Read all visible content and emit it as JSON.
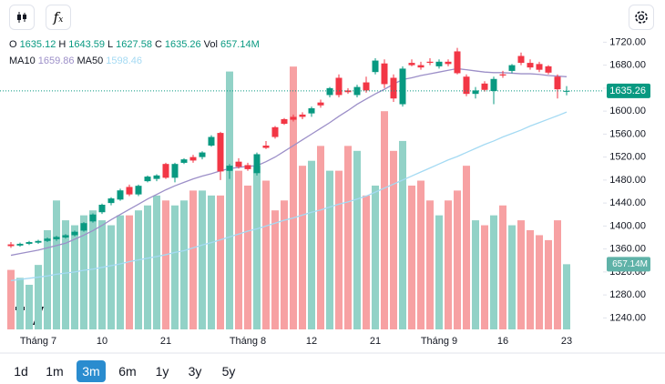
{
  "toolbar": {
    "ranges": [
      "1d",
      "1m",
      "3m",
      "6m",
      "1y",
      "3y",
      "5y"
    ],
    "active_range": "3m"
  },
  "chart_data": {
    "type": "candlestick",
    "header_labels": [
      "O",
      "H",
      "L",
      "C",
      "Vol"
    ],
    "categories": [
      null,
      null,
      null,
      "Tháng 7",
      null,
      null,
      null,
      null,
      null,
      null,
      "10",
      null,
      null,
      null,
      null,
      null,
      null,
      "21",
      null,
      null,
      null,
      null,
      null,
      null,
      null,
      null,
      "Tháng 8",
      null,
      null,
      null,
      null,
      null,
      null,
      "12",
      null,
      null,
      null,
      null,
      null,
      null,
      "21",
      null,
      null,
      null,
      null,
      null,
      null,
      "Tháng 9",
      null,
      null,
      null,
      null,
      null,
      null,
      "16",
      null,
      null,
      null,
      null,
      null,
      null,
      "23"
    ],
    "ohlc": [
      [
        1368,
        1372,
        1362,
        1365
      ],
      [
        1366,
        1371,
        1364,
        1369
      ],
      [
        1369,
        1374,
        1367,
        1372
      ],
      [
        1371,
        1376,
        1369,
        1374
      ],
      [
        1374,
        1380,
        1372,
        1378
      ],
      [
        1377,
        1383,
        1374,
        1381
      ],
      [
        1380,
        1386,
        1378,
        1384
      ],
      [
        1384,
        1392,
        1382,
        1390
      ],
      [
        1392,
        1407,
        1390,
        1405
      ],
      [
        1408,
        1422,
        1406,
        1420
      ],
      [
        1424,
        1439,
        1421,
        1437
      ],
      [
        1440,
        1450,
        1436,
        1448
      ],
      [
        1446,
        1465,
        1444,
        1462
      ],
      [
        1468,
        1472,
        1452,
        1455
      ],
      [
        1455,
        1472,
        1452,
        1470
      ],
      [
        1478,
        1488,
        1476,
        1486
      ],
      [
        1482,
        1490,
        1478,
        1488
      ],
      [
        1508,
        1510,
        1482,
        1484
      ],
      [
        1484,
        1510,
        1476,
        1508
      ],
      [
        1510,
        1518,
        1508,
        1516
      ],
      [
        1520,
        1524,
        1510,
        1514
      ],
      [
        1520,
        1530,
        1516,
        1528
      ],
      [
        1540,
        1558,
        1538,
        1555
      ],
      [
        1562,
        1564,
        1480,
        1495
      ],
      [
        1496,
        1508,
        1482,
        1505
      ],
      [
        1512,
        1518,
        1500,
        1503
      ],
      [
        1506,
        1510,
        1496,
        1499
      ],
      [
        1492,
        1528,
        1488,
        1525
      ],
      [
        1540,
        1548,
        1534,
        1536
      ],
      [
        1572,
        1574,
        1552,
        1555
      ],
      [
        1586,
        1588,
        1576,
        1578
      ],
      [
        1590,
        1594,
        1582,
        1585
      ],
      [
        1594,
        1598,
        1586,
        1590
      ],
      [
        1596,
        1608,
        1590,
        1605
      ],
      [
        1615,
        1620,
        1606,
        1610
      ],
      [
        1628,
        1642,
        1624,
        1640
      ],
      [
        1658,
        1664,
        1624,
        1628
      ],
      [
        1636,
        1640,
        1630,
        1633
      ],
      [
        1628,
        1646,
        1624,
        1642
      ],
      [
        1650,
        1660,
        1632,
        1636
      ],
      [
        1668,
        1692,
        1664,
        1688
      ],
      [
        1683,
        1690,
        1640,
        1647
      ],
      [
        1658,
        1664,
        1616,
        1622
      ],
      [
        1612,
        1678,
        1608,
        1674
      ],
      [
        1684,
        1690,
        1678,
        1680
      ],
      [
        1680,
        1686,
        1672,
        1676
      ],
      [
        1686,
        1692,
        1680,
        1684
      ],
      [
        1678,
        1690,
        1674,
        1686
      ],
      [
        1686,
        1690,
        1678,
        1682
      ],
      [
        1704,
        1710,
        1664,
        1666
      ],
      [
        1660,
        1664,
        1626,
        1630
      ],
      [
        1630,
        1642,
        1622,
        1636
      ],
      [
        1648,
        1652,
        1634,
        1637
      ],
      [
        1635,
        1660,
        1612,
        1656
      ],
      [
        1664,
        1670,
        1658,
        1662
      ],
      [
        1670,
        1682,
        1666,
        1680
      ],
      [
        1696,
        1702,
        1680,
        1684
      ],
      [
        1684,
        1690,
        1672,
        1676
      ],
      [
        1682,
        1686,
        1668,
        1672
      ],
      [
        1678,
        1680,
        1664,
        1667
      ],
      [
        1660,
        1664,
        1622,
        1638
      ],
      [
        1635.12,
        1643.59,
        1627.58,
        1635.26
      ]
    ],
    "up_color": "#089981",
    "down_color": "#f23645",
    "volume": {
      "values": [
        600,
        520,
        450,
        650,
        1000,
        1300,
        1100,
        1050,
        1150,
        1200,
        1100,
        1050,
        1150,
        1150,
        1200,
        1250,
        1350,
        1300,
        1250,
        1300,
        1400,
        1400,
        1350,
        1350,
        2600,
        1600,
        1450,
        1650,
        1500,
        1200,
        1300,
        2650,
        1650,
        1700,
        1850,
        1600,
        1600,
        1850,
        1800,
        1350,
        1450,
        2200,
        1800,
        1900,
        1450,
        1500,
        1300,
        1150,
        1300,
        1400,
        1650,
        1100,
        1050,
        1150,
        1250,
        1050,
        1100,
        1000,
        950,
        900,
        1100,
        657.14
      ],
      "value_labels": [
        null,
        null,
        null,
        null,
        null,
        null,
        null,
        null,
        null,
        null,
        null,
        null,
        null,
        null,
        null,
        null,
        null,
        null,
        null,
        null,
        null,
        null,
        null,
        null,
        null,
        null,
        null,
        null,
        null,
        null,
        null,
        null,
        null,
        null,
        null,
        null,
        null,
        null,
        null,
        null,
        null,
        null,
        null,
        null,
        null,
        null,
        null,
        null,
        null,
        null,
        null,
        null,
        null,
        null,
        null,
        null,
        null,
        null,
        null,
        null,
        null,
        "657.14M"
      ],
      "ylim": [
        0,
        3000
      ],
      "up_color": "#92d2c7",
      "down_color": "#f7a1a3"
    },
    "series": [
      {
        "name": "MA10",
        "color": "#9c8fc8",
        "values": [
          1349,
          1352,
          1355,
          1358,
          1362,
          1366,
          1370,
          1377,
          1384,
          1392,
          1401,
          1411,
          1420,
          1429,
          1438,
          1447,
          1455,
          1463,
          1470,
          1476,
          1482,
          1487,
          1491,
          1496,
          1500,
          1502,
          1504,
          1505,
          1512,
          1520,
          1530,
          1540,
          1550,
          1560,
          1570,
          1580,
          1591,
          1601,
          1612,
          1621,
          1630,
          1638,
          1647,
          1655,
          1658,
          1662,
          1665,
          1668,
          1671,
          1674,
          1672,
          1670,
          1668,
          1667,
          1667,
          1666,
          1665,
          1665,
          1664,
          1662,
          1661,
          1659.86
        ]
      },
      {
        "name": "MA50",
        "color": "#a4daf3",
        "values": [
          1305,
          1307,
          1309,
          1311,
          1313,
          1316,
          1318,
          1320,
          1323,
          1325,
          1328,
          1331,
          1334,
          1338,
          1341,
          1344,
          1347,
          1350,
          1354,
          1357,
          1362,
          1367,
          1371,
          1376,
          1381,
          1386,
          1391,
          1395,
          1400,
          1405,
          1410,
          1414,
          1419,
          1424,
          1428,
          1433,
          1438,
          1442,
          1447,
          1452,
          1459,
          1466,
          1473,
          1480,
          1487,
          1494,
          1501,
          1508,
          1515,
          1521,
          1528,
          1535,
          1542,
          1548,
          1555,
          1561,
          1567,
          1574,
          1580,
          1586,
          1592,
          1598.46
        ]
      }
    ],
    "ylim": [
      1220,
      1738
    ],
    "yticks": [
      {
        "value": 1240,
        "label": "1240.00"
      },
      {
        "value": 1280,
        "label": "1280.00"
      },
      {
        "value": 1320,
        "label": "1320.00"
      },
      {
        "value": 1360,
        "label": "1360.00"
      },
      {
        "value": 1400,
        "label": "1400.00"
      },
      {
        "value": 1440,
        "label": "1440.00"
      },
      {
        "value": 1480,
        "label": "1480.00"
      },
      {
        "value": 1520,
        "label": "1520.00"
      },
      {
        "value": 1560,
        "label": "1560.00"
      },
      {
        "value": 1600,
        "label": "1600.00"
      },
      {
        "value": 1640,
        "label": "1640.00"
      },
      {
        "value": 1680,
        "label": "1680.00"
      },
      {
        "value": 1720,
        "label": "1720.00"
      }
    ]
  }
}
